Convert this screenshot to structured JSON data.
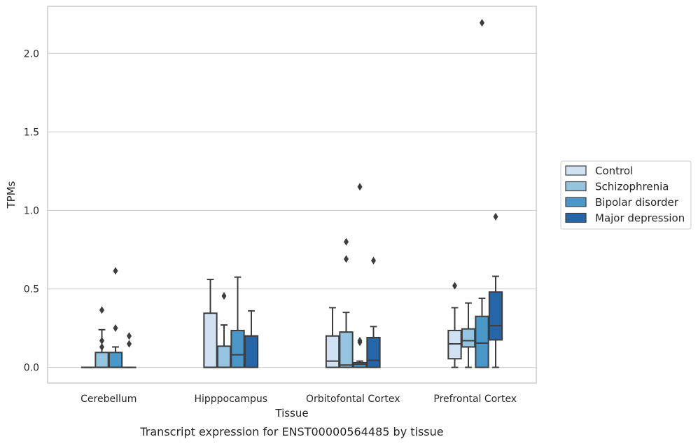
{
  "caption": "Transcript expression for ENST00000564485 by tissue",
  "chart_data": {
    "type": "box",
    "title": "",
    "xlabel": "Tissue",
    "ylabel": "TPMs",
    "ylim": [
      -0.1,
      2.3
    ],
    "yticks": [
      0.0,
      0.5,
      1.0,
      1.5,
      2.0
    ],
    "ytick_labels": [
      "0.0",
      "0.5",
      "1.0",
      "1.5",
      "2.0"
    ],
    "grid": "horizontal",
    "legend_position": "right",
    "categories": [
      "Cerebellum",
      "Hipppocampus",
      "Orbitofontal Cortex",
      "Prefrontal Cortex"
    ],
    "series": [
      {
        "name": "Control",
        "color": "#d0e1f2",
        "boxes": [
          {
            "whislo": 0.0,
            "q1": 0.0,
            "med": 0.0,
            "q3": 0.0,
            "whishi": 0.0,
            "fliers": []
          },
          {
            "whislo": 0.0,
            "q1": 0.0,
            "med": 0.0,
            "q3": 0.345,
            "whishi": 0.56,
            "fliers": []
          },
          {
            "whislo": 0.0,
            "q1": 0.0,
            "med": 0.04,
            "q3": 0.2,
            "whishi": 0.38,
            "fliers": []
          },
          {
            "whislo": 0.0,
            "q1": 0.055,
            "med": 0.15,
            "q3": 0.235,
            "whishi": 0.38,
            "fliers": [
              0.52
            ]
          }
        ]
      },
      {
        "name": "Schizophrenia",
        "color": "#94c4df",
        "boxes": [
          {
            "whislo": 0.0,
            "q1": 0.0,
            "med": 0.0,
            "q3": 0.095,
            "whishi": 0.24,
            "fliers": [
              0.13,
              0.17,
              0.365
            ]
          },
          {
            "whislo": 0.0,
            "q1": 0.0,
            "med": 0.0,
            "q3": 0.135,
            "whishi": 0.27,
            "fliers": [
              0.455
            ]
          },
          {
            "whislo": 0.0,
            "q1": 0.0,
            "med": 0.015,
            "q3": 0.225,
            "whishi": 0.35,
            "fliers": [
              0.69,
              0.8
            ]
          },
          {
            "whislo": 0.0,
            "q1": 0.13,
            "med": 0.17,
            "q3": 0.245,
            "whishi": 0.41,
            "fliers": []
          }
        ]
      },
      {
        "name": "Bipolar disorder",
        "color": "#4a98c9",
        "boxes": [
          {
            "whislo": 0.0,
            "q1": 0.0,
            "med": 0.0,
            "q3": 0.095,
            "whishi": 0.13,
            "fliers": [
              0.25,
              0.615
            ]
          },
          {
            "whislo": 0.0,
            "q1": 0.0,
            "med": 0.08,
            "q3": 0.235,
            "whishi": 0.575,
            "fliers": []
          },
          {
            "whislo": 0.0,
            "q1": 0.0,
            "med": 0.02,
            "q3": 0.03,
            "whishi": 0.04,
            "fliers": [
              0.16,
              0.17,
              1.15
            ]
          },
          {
            "whislo": 0.0,
            "q1": 0.0,
            "med": 0.155,
            "q3": 0.325,
            "whishi": 0.44,
            "fliers": [
              2.195
            ]
          }
        ]
      },
      {
        "name": "Major depression",
        "color": "#2566a8",
        "boxes": [
          {
            "whislo": 0.0,
            "q1": 0.0,
            "med": 0.0,
            "q3": 0.0,
            "whishi": 0.0,
            "fliers": [
              0.15,
              0.2
            ]
          },
          {
            "whislo": 0.0,
            "q1": 0.0,
            "med": 0.2,
            "q3": 0.2,
            "whishi": 0.36,
            "fliers": []
          },
          {
            "whislo": 0.0,
            "q1": 0.0,
            "med": 0.045,
            "q3": 0.19,
            "whishi": 0.26,
            "fliers": [
              0.68
            ]
          },
          {
            "whislo": 0.0,
            "q1": 0.175,
            "med": 0.265,
            "q3": 0.48,
            "whishi": 0.58,
            "fliers": [
              0.96
            ]
          }
        ]
      }
    ]
  }
}
